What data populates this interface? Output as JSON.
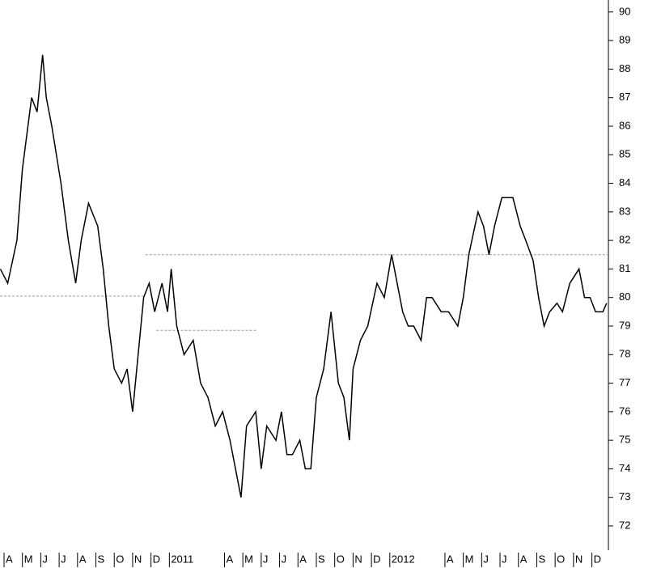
{
  "chart_data": {
    "type": "line",
    "x": [
      -0.2,
      0.2,
      0.7,
      1.0,
      1.5,
      1.8,
      2.1,
      2.3,
      2.6,
      3.1,
      3.5,
      3.9,
      4.2,
      4.6,
      5.1,
      5.4,
      5.7,
      6.0,
      6.4,
      6.7,
      7.0,
      7.3,
      7.6,
      7.9,
      8.2,
      8.6,
      8.9,
      9.1,
      9.4,
      9.8,
      10.3,
      10.7,
      11.1,
      11.5,
      11.9,
      12.3,
      12.6,
      12.9,
      13.2,
      13.7,
      14.0,
      14.3,
      14.8,
      15.1,
      15.4,
      15.7,
      16.1,
      16.4,
      16.7,
      17.0,
      17.4,
      17.8,
      18.2,
      18.5,
      18.8,
      19.0,
      19.4,
      19.8,
      20.3,
      20.7,
      21.1,
      21.4,
      21.7,
      22.0,
      22.3,
      22.7,
      23.0,
      23.3,
      23.8,
      24.2,
      24.7,
      25.0,
      25.3,
      25.8,
      26.1,
      26.4,
      26.7,
      27.1,
      27.4,
      27.7,
      28.1,
      28.4,
      28.8,
      29.1,
      29.4,
      29.7,
      30.1,
      30.4,
      30.8,
      31.3,
      31.6,
      31.9,
      32.2,
      32.6,
      32.8
    ],
    "series": [
      {
        "color": "#000000",
        "values": [
          81,
          80.5,
          82,
          84.5,
          87,
          86.5,
          88.5,
          87,
          86,
          84,
          82,
          80.5,
          82,
          83.3,
          82.5,
          81,
          79,
          77.5,
          77,
          77.5,
          76,
          78,
          80,
          80.5,
          79.5,
          80.5,
          79.5,
          81,
          79,
          78,
          78.5,
          77,
          76.5,
          75.5,
          76,
          75,
          74,
          73,
          75.5,
          76,
          74,
          75.5,
          75,
          76,
          74.5,
          74.5,
          75,
          74,
          74,
          76.5,
          77.5,
          79.5,
          77,
          76.5,
          75,
          77.5,
          78.5,
          79,
          80.5,
          80,
          81.5,
          80.5,
          79.5,
          79,
          79,
          78.5,
          80,
          80,
          79.5,
          79.5,
          79,
          80,
          81.5,
          83,
          82.5,
          81.5,
          82.5,
          83.5,
          83.5,
          83.5,
          82.5,
          82,
          81.3,
          80,
          79,
          79.5,
          79.8,
          79.5,
          80.5,
          81,
          80,
          80,
          79.5,
          79.5,
          79.8
        ]
      }
    ],
    "xlim": [
      -0.22,
      32.9
    ],
    "xticks": [
      {
        "value": 0,
        "label": "A"
      },
      {
        "value": 1,
        "label": "M"
      },
      {
        "value": 2,
        "label": "J"
      },
      {
        "value": 3,
        "label": "J"
      },
      {
        "value": 4,
        "label": "A"
      },
      {
        "value": 5,
        "label": "S"
      },
      {
        "value": 6,
        "label": "O"
      },
      {
        "value": 7,
        "label": "N"
      },
      {
        "value": 8,
        "label": "D"
      },
      {
        "value": 9,
        "label": "2011"
      },
      {
        "value": 12,
        "label": "A"
      },
      {
        "value": 13,
        "label": "M"
      },
      {
        "value": 14,
        "label": "J"
      },
      {
        "value": 15,
        "label": "J"
      },
      {
        "value": 16,
        "label": "A"
      },
      {
        "value": 17,
        "label": "S"
      },
      {
        "value": 18,
        "label": "O"
      },
      {
        "value": 19,
        "label": "N"
      },
      {
        "value": 20,
        "label": "D"
      },
      {
        "value": 21,
        "label": "2012"
      },
      {
        "value": 24,
        "label": "A"
      },
      {
        "value": 25,
        "label": "M"
      },
      {
        "value": 26,
        "label": "J"
      },
      {
        "value": 27,
        "label": "J"
      },
      {
        "value": 28,
        "label": "A"
      },
      {
        "value": 29,
        "label": "S"
      },
      {
        "value": 30,
        "label": "O"
      },
      {
        "value": 31,
        "label": "N"
      },
      {
        "value": 32,
        "label": "D"
      }
    ],
    "ylim": [
      71.15,
      90.42
    ],
    "yticks": [
      72,
      73,
      74,
      75,
      76,
      77,
      78,
      79,
      80,
      81,
      82,
      83,
      84,
      85,
      86,
      87,
      88,
      89,
      90
    ],
    "reference_lines": [
      {
        "value": 81.5,
        "x": [
          7.7,
          32.9
        ]
      },
      {
        "value": 80.05,
        "x": [
          -0.22,
          7.7
        ]
      },
      {
        "value": 78.85,
        "x": [
          8.3,
          13.8
        ]
      }
    ]
  }
}
